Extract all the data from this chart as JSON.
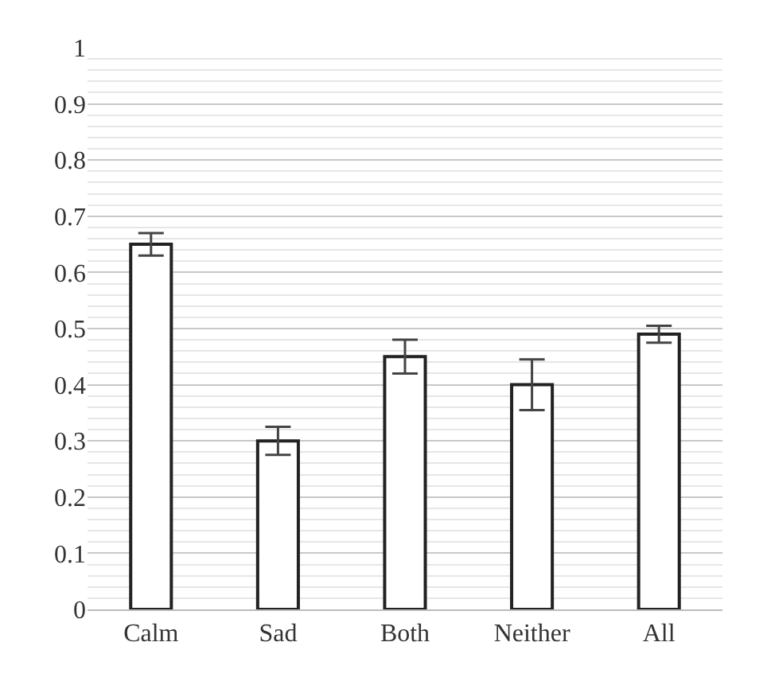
{
  "chart_data": {
    "type": "bar",
    "categories": [
      "Calm",
      "Sad",
      "Both",
      "Neither",
      "All"
    ],
    "values": [
      0.65,
      0.3,
      0.45,
      0.4,
      0.49
    ],
    "errors": [
      0.02,
      0.025,
      0.03,
      0.045,
      0.015
    ],
    "color": "#ffffff",
    "ylim": [
      0,
      1
    ],
    "yticks": [
      0,
      {
        "value": 0.02,
        "label": null
      },
      {
        "value": 0.04,
        "label": null
      },
      {
        "value": 0.06,
        "label": null
      },
      {
        "value": 0.08,
        "label": null
      },
      0.1,
      {
        "value": 0.12,
        "label": null
      },
      {
        "value": 0.14,
        "label": null
      },
      {
        "value": 0.16,
        "label": null
      },
      {
        "value": 0.18,
        "label": null
      },
      0.2,
      {
        "value": 0.22,
        "label": null
      },
      {
        "value": 0.24,
        "label": null
      },
      {
        "value": 0.26,
        "label": null
      },
      {
        "value": 0.28,
        "label": null
      },
      0.3,
      {
        "value": 0.32,
        "label": null
      },
      {
        "value": 0.34,
        "label": null
      },
      {
        "value": 0.36,
        "label": null
      },
      {
        "value": 0.38,
        "label": null
      },
      0.4,
      {
        "value": 0.42,
        "label": null
      },
      {
        "value": 0.44,
        "label": null
      },
      {
        "value": 0.46,
        "label": null
      },
      {
        "value": 0.48,
        "label": null
      },
      0.5,
      {
        "value": 0.52,
        "label": null
      },
      {
        "value": 0.54,
        "label": null
      },
      {
        "value": 0.56,
        "label": null
      },
      {
        "value": 0.58,
        "label": null
      },
      0.6,
      {
        "value": 0.62,
        "label": null
      },
      {
        "value": 0.64,
        "label": null
      },
      {
        "value": 0.66,
        "label": null
      },
      {
        "value": 0.68,
        "label": null
      },
      0.7,
      {
        "value": 0.72,
        "label": null
      },
      {
        "value": 0.74,
        "label": null
      },
      {
        "value": 0.76,
        "label": null
      },
      {
        "value": 0.78,
        "label": null
      },
      0.8,
      {
        "value": 0.82,
        "label": null
      },
      {
        "value": 0.84,
        "label": null
      },
      {
        "value": 0.86,
        "label": null
      },
      {
        "value": 0.88,
        "label": null
      },
      0.9,
      {
        "value": 0.92,
        "label": null
      },
      {
        "value": 0.94,
        "label": null
      },
      {
        "value": 0.96,
        "label": null
      },
      {
        "value": 0.98,
        "label": null
      },
      1
    ],
    "grid": "y",
    "legend": false
  }
}
